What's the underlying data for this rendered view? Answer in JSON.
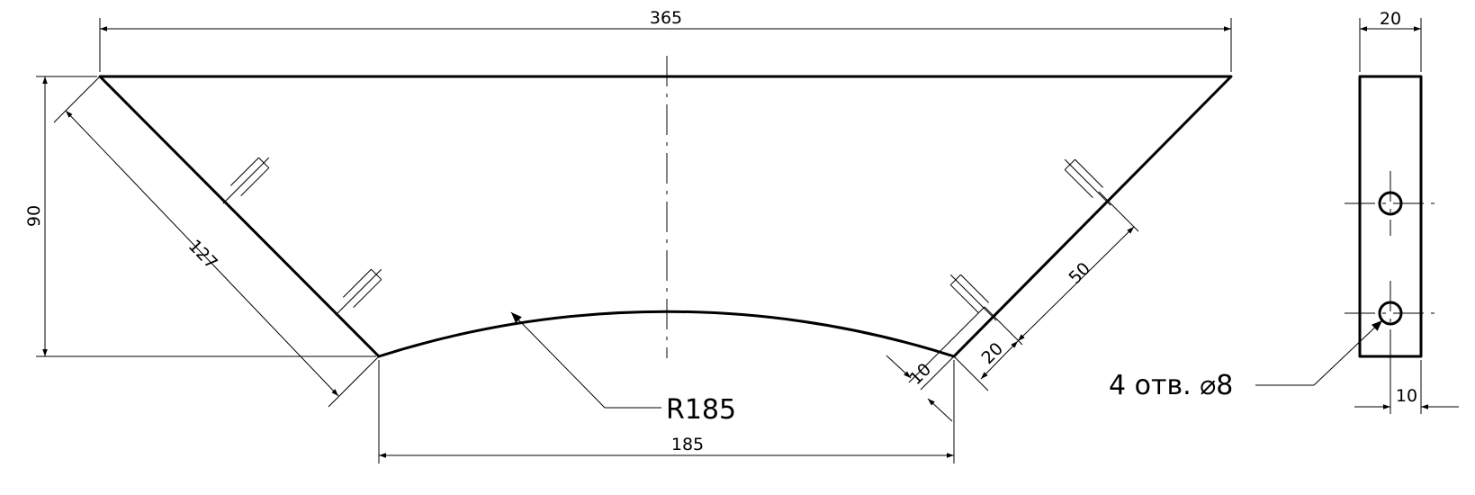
{
  "dimensions": {
    "overall_width": "365",
    "height": "90",
    "slant_length": "127",
    "bottom_width": "185",
    "hole_spacing": "50",
    "hole_offset_a": "20",
    "hole_offset_b": "10",
    "thickness": "20",
    "hole_edge_offset": "10"
  },
  "callouts": {
    "radius": "R185",
    "holes": "4 отв. ⌀8"
  },
  "icons": {
    "arrowhead": "arrowhead-icon",
    "hole": "hole-icon"
  }
}
